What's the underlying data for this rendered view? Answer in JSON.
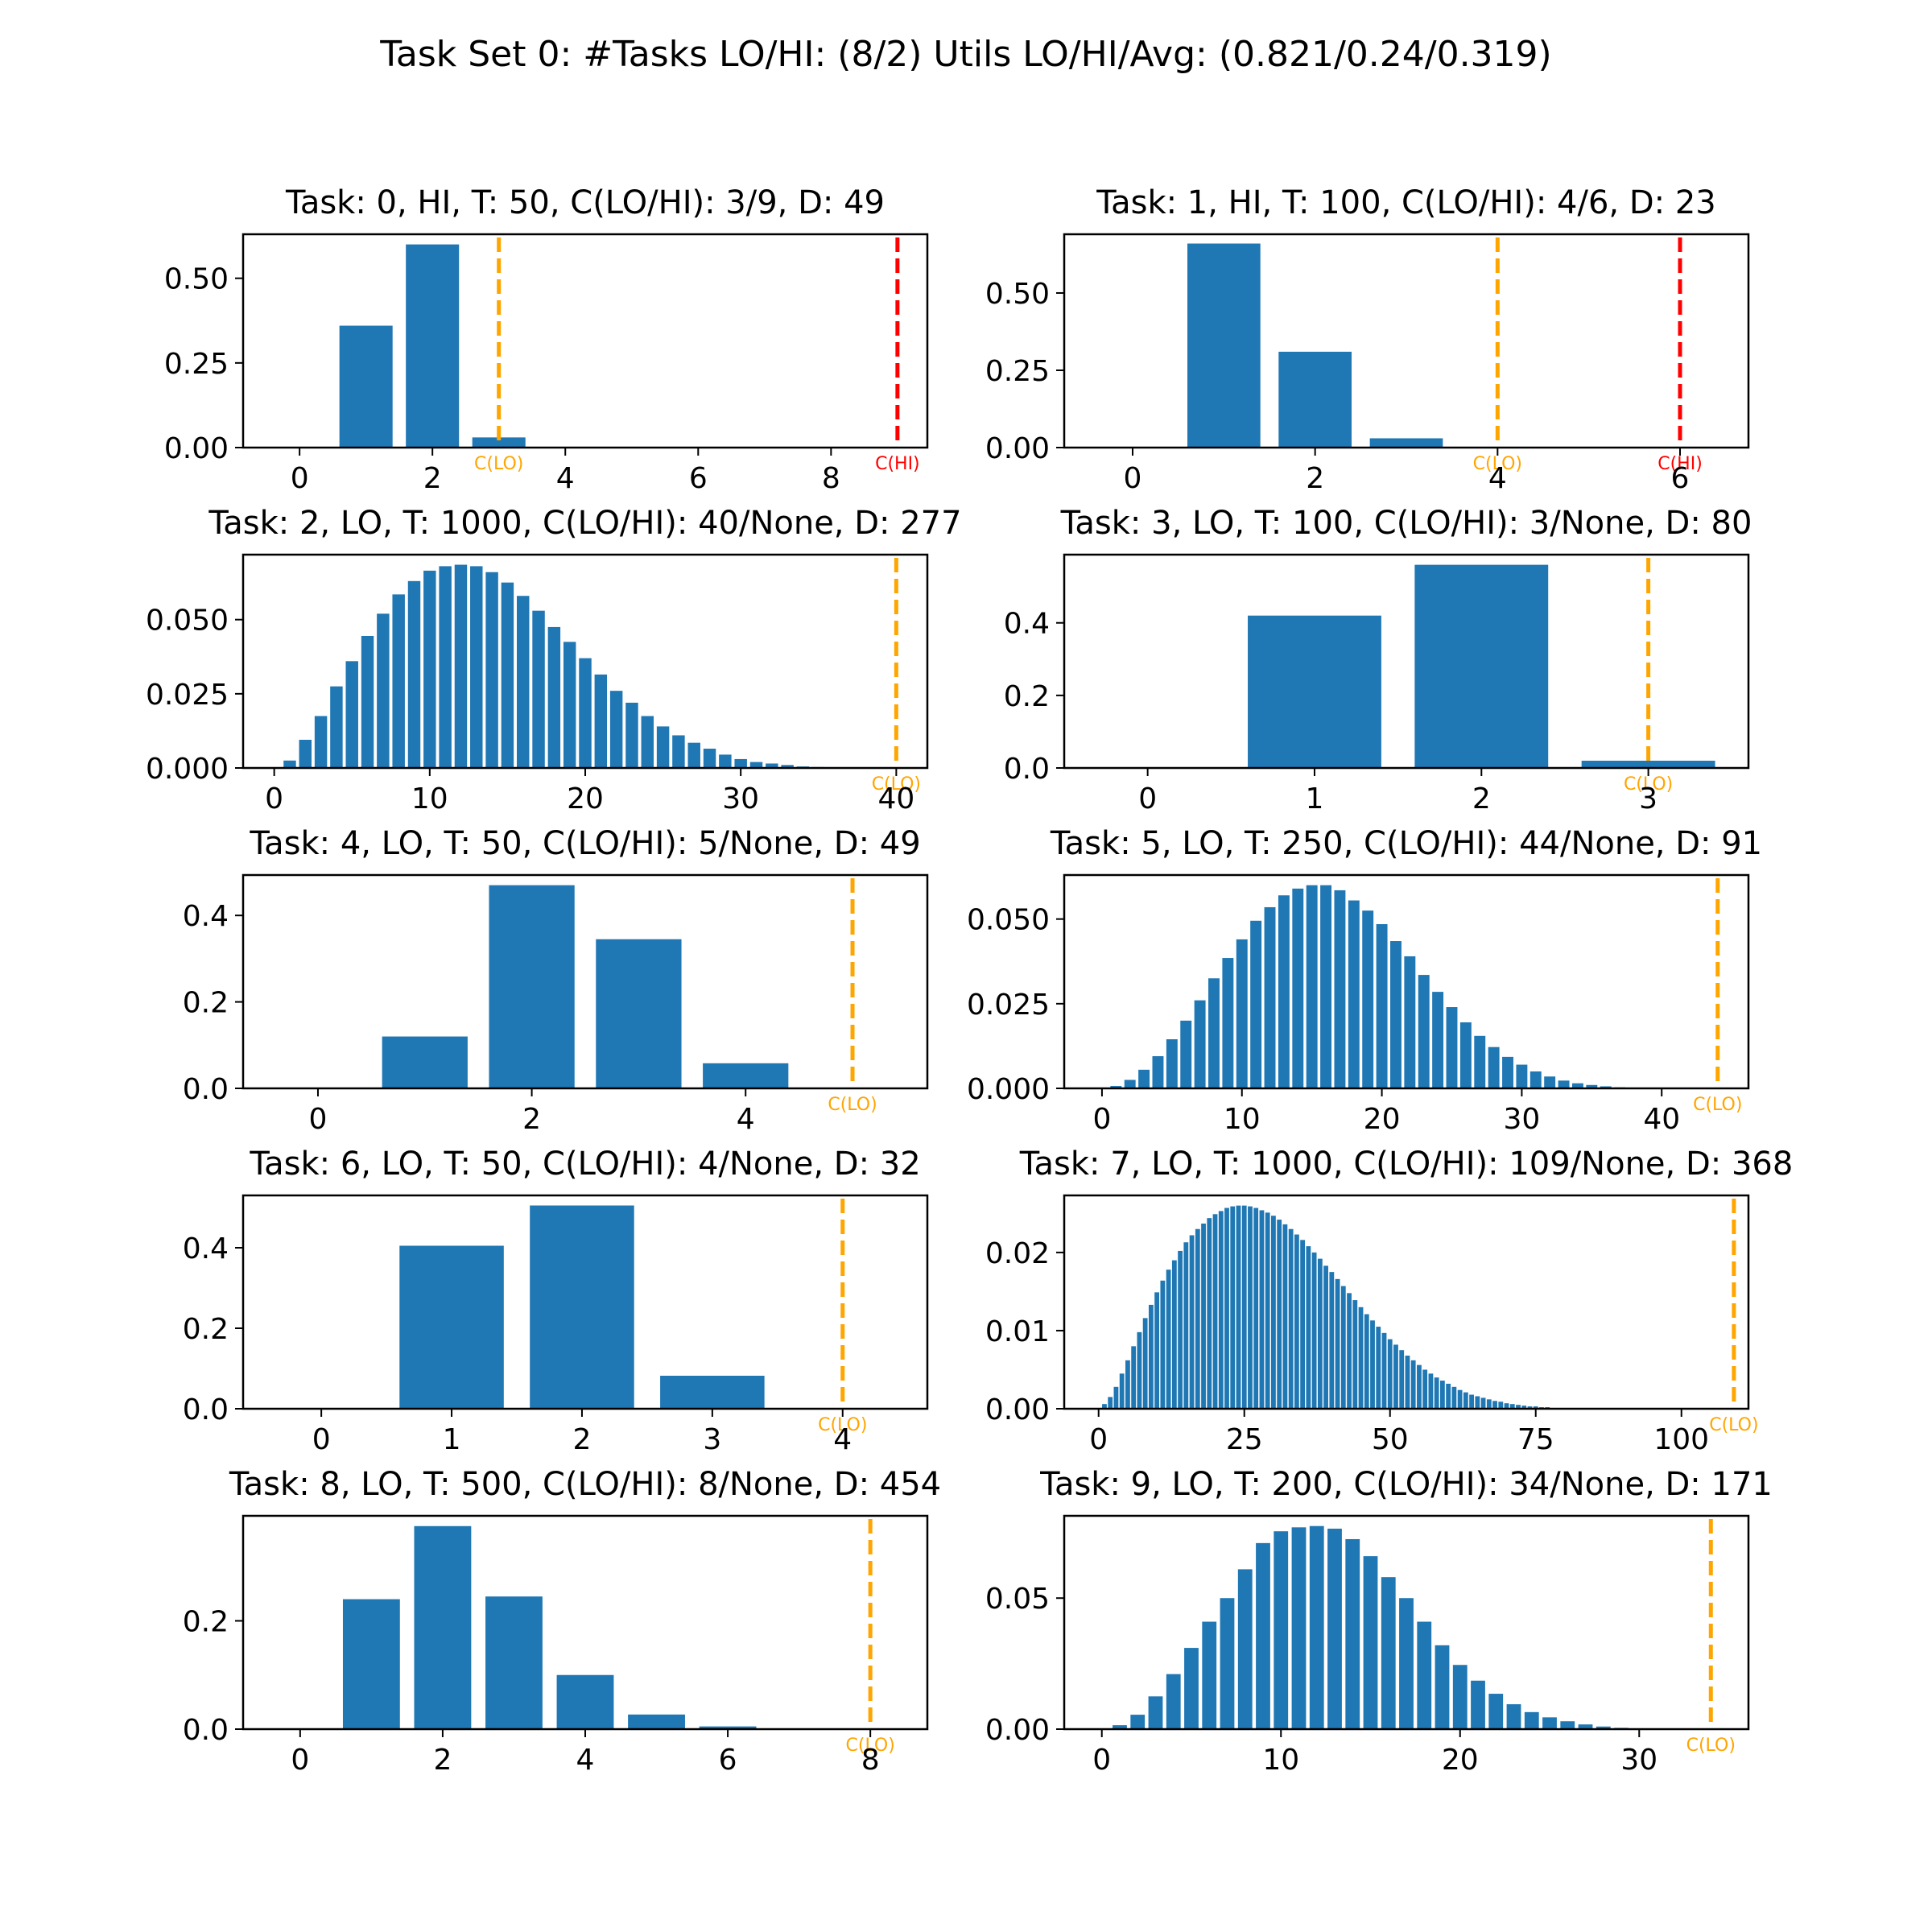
{
  "figure": {
    "suptitle": "Task Set 0: #Tasks LO/HI: (8/2)  Utils LO/HI/Avg: (0.821/0.24/0.319)"
  },
  "colors": {
    "bar": "#1f77b4",
    "c_lo": "#ffa500",
    "c_hi": "#ff0000",
    "axis": "#000000"
  },
  "chart_data": [
    {
      "type": "bar",
      "title": "Task: 0, HI, T: 50, C(LO/HI): 3/9, D: 49",
      "x": [
        0,
        1,
        2,
        3,
        4,
        5,
        6,
        7,
        8,
        9
      ],
      "values": [
        0,
        0.36,
        0.6,
        0.03,
        0,
        0,
        0,
        0,
        0,
        0
      ],
      "xlim": [
        -0.85,
        9.45
      ],
      "ylim": [
        0,
        0.63
      ],
      "xticks": [
        0,
        2,
        4,
        6,
        8
      ],
      "yticks": [
        0.0,
        0.25,
        0.5
      ],
      "ytick_labels": [
        "0.00",
        "0.25",
        "0.50"
      ],
      "markers": [
        {
          "x": 3,
          "label": "C(LO)",
          "kind": "lo"
        },
        {
          "x": 9,
          "label": "C(HI)",
          "kind": "hi"
        }
      ]
    },
    {
      "type": "bar",
      "title": "Task: 1, HI, T: 100, C(LO/HI): 4/6, D: 23",
      "x": [
        0,
        1,
        2,
        3,
        4,
        5,
        6
      ],
      "values": [
        0,
        0.66,
        0.31,
        0.03,
        0,
        0,
        0
      ],
      "xlim": [
        -0.75,
        6.75
      ],
      "ylim": [
        0,
        0.69
      ],
      "xticks": [
        0,
        2,
        4,
        6
      ],
      "yticks": [
        0.0,
        0.25,
        0.5
      ],
      "ytick_labels": [
        "0.00",
        "0.25",
        "0.50"
      ],
      "markers": [
        {
          "x": 4,
          "label": "C(LO)",
          "kind": "lo"
        },
        {
          "x": 6,
          "label": "C(HI)",
          "kind": "hi"
        }
      ]
    },
    {
      "type": "bar",
      "title": "Task: 2, LO, T: 1000, C(LO/HI): 40/None, D: 277",
      "x": [
        0,
        1,
        2,
        3,
        4,
        5,
        6,
        7,
        8,
        9,
        10,
        11,
        12,
        13,
        14,
        15,
        16,
        17,
        18,
        19,
        20,
        21,
        22,
        23,
        24,
        25,
        26,
        27,
        28,
        29,
        30,
        31,
        32,
        33,
        34,
        35,
        36,
        37,
        38,
        39,
        40
      ],
      "values": [
        0,
        0.0025,
        0.0095,
        0.0175,
        0.0275,
        0.036,
        0.0445,
        0.052,
        0.0585,
        0.063,
        0.0665,
        0.068,
        0.0685,
        0.068,
        0.066,
        0.0625,
        0.058,
        0.053,
        0.0475,
        0.0425,
        0.037,
        0.0315,
        0.026,
        0.022,
        0.0175,
        0.014,
        0.011,
        0.0085,
        0.0065,
        0.0045,
        0.003,
        0.002,
        0.0015,
        0.001,
        0.0005,
        0.0003,
        0,
        0,
        0,
        0,
        0
      ],
      "xlim": [
        -2.0,
        42.0
      ],
      "ylim": [
        0,
        0.0719
      ],
      "xticks": [
        0,
        10,
        20,
        30,
        40
      ],
      "yticks": [
        0.0,
        0.025,
        0.05
      ],
      "ytick_labels": [
        "0.000",
        "0.025",
        "0.050"
      ],
      "markers": [
        {
          "x": 40,
          "label": "C(LO)",
          "kind": "lo"
        }
      ]
    },
    {
      "type": "bar",
      "title": "Task: 3, LO, T: 100, C(LO/HI): 3/None, D: 80",
      "x": [
        0,
        1,
        2,
        3
      ],
      "values": [
        0,
        0.42,
        0.56,
        0.02
      ],
      "xlim": [
        -0.5,
        3.6
      ],
      "ylim": [
        0,
        0.588
      ],
      "xticks": [
        0,
        1,
        2,
        3
      ],
      "yticks": [
        0.0,
        0.2,
        0.4
      ],
      "ytick_labels": [
        "0.0",
        "0.2",
        "0.4"
      ],
      "markers": [
        {
          "x": 3,
          "label": "C(LO)",
          "kind": "lo"
        }
      ]
    },
    {
      "type": "bar",
      "title": "Task: 4, LO, T: 50, C(LO/HI): 5/None, D: 49",
      "x": [
        0,
        1,
        2,
        3,
        4,
        5
      ],
      "values": [
        0,
        0.12,
        0.47,
        0.345,
        0.058,
        0
      ],
      "xlim": [
        -0.7,
        5.7
      ],
      "ylim": [
        0,
        0.4935
      ],
      "xticks": [
        0,
        2,
        4
      ],
      "yticks": [
        0.0,
        0.2,
        0.4
      ],
      "ytick_labels": [
        "0.0",
        "0.2",
        "0.4"
      ],
      "markers": [
        {
          "x": 5,
          "label": "C(LO)",
          "kind": "lo"
        }
      ]
    },
    {
      "type": "bar",
      "title": "Task: 5, LO, T: 250, C(LO/HI): 44/None, D: 91",
      "x": [
        0,
        1,
        2,
        3,
        4,
        5,
        6,
        7,
        8,
        9,
        10,
        11,
        12,
        13,
        14,
        15,
        16,
        17,
        18,
        19,
        20,
        21,
        22,
        23,
        24,
        25,
        26,
        27,
        28,
        29,
        30,
        31,
        32,
        33,
        34,
        35,
        36,
        37,
        38,
        39,
        40,
        41,
        42,
        43,
        44
      ],
      "values": [
        0,
        0.0007,
        0.0025,
        0.0055,
        0.0095,
        0.0145,
        0.02,
        0.026,
        0.0325,
        0.0385,
        0.044,
        0.0495,
        0.0535,
        0.057,
        0.059,
        0.06,
        0.06,
        0.0585,
        0.0555,
        0.0525,
        0.0485,
        0.0435,
        0.039,
        0.0335,
        0.0285,
        0.024,
        0.0195,
        0.0155,
        0.0122,
        0.0093,
        0.007,
        0.005,
        0.0035,
        0.0023,
        0.0015,
        0.001,
        0.0006,
        0.0003,
        0,
        0,
        0,
        0,
        0,
        0,
        0
      ],
      "xlim": [
        -2.7,
        46.2
      ],
      "ylim": [
        0,
        0.063
      ],
      "xticks": [
        0,
        10,
        20,
        30,
        40
      ],
      "yticks": [
        0.0,
        0.025,
        0.05
      ],
      "ytick_labels": [
        "0.000",
        "0.025",
        "0.050"
      ],
      "markers": [
        {
          "x": 44,
          "label": "C(LO)",
          "kind": "lo"
        }
      ]
    },
    {
      "type": "bar",
      "title": "Task: 6, LO, T: 50, C(LO/HI): 4/None, D: 32",
      "x": [
        0,
        1,
        2,
        3,
        4
      ],
      "values": [
        0,
        0.405,
        0.505,
        0.082,
        0
      ],
      "xlim": [
        -0.6,
        4.65
      ],
      "ylim": [
        0,
        0.53
      ],
      "xticks": [
        0,
        1,
        2,
        3,
        4
      ],
      "yticks": [
        0.0,
        0.2,
        0.4
      ],
      "ytick_labels": [
        "0.0",
        "0.2",
        "0.4"
      ],
      "markers": [
        {
          "x": 4,
          "label": "C(LO)",
          "kind": "lo"
        }
      ]
    },
    {
      "type": "bar",
      "title": "Task: 7, LO, T: 1000, C(LO/HI): 109/None, D: 368",
      "x": [
        0,
        1,
        2,
        3,
        4,
        5,
        6,
        7,
        8,
        9,
        10,
        11,
        12,
        13,
        14,
        15,
        16,
        17,
        18,
        19,
        20,
        21,
        22,
        23,
        24,
        25,
        26,
        27,
        28,
        29,
        30,
        31,
        32,
        33,
        34,
        35,
        36,
        37,
        38,
        39,
        40,
        41,
        42,
        43,
        44,
        45,
        46,
        47,
        48,
        49,
        50,
        51,
        52,
        53,
        54,
        55,
        56,
        57,
        58,
        59,
        60,
        61,
        62,
        63,
        64,
        65,
        66,
        67,
        68,
        69,
        70,
        71,
        72,
        73,
        74,
        75,
        76,
        77,
        78,
        79,
        80,
        81,
        82,
        83,
        84,
        85,
        86,
        87,
        88,
        89,
        90,
        91,
        92,
        93,
        94,
        95,
        96,
        97,
        98,
        99,
        100,
        101,
        102,
        103,
        104,
        105,
        106,
        107,
        108,
        109
      ],
      "values": [
        0,
        0.0006,
        0.0015,
        0.0028,
        0.0045,
        0.0062,
        0.008,
        0.0098,
        0.0116,
        0.0133,
        0.0149,
        0.0164,
        0.0178,
        0.019,
        0.0202,
        0.0213,
        0.0222,
        0.023,
        0.0237,
        0.0244,
        0.0249,
        0.0253,
        0.0257,
        0.0259,
        0.026,
        0.026,
        0.0259,
        0.0257,
        0.0254,
        0.0251,
        0.0247,
        0.0242,
        0.0236,
        0.023,
        0.0223,
        0.0216,
        0.0208,
        0.02,
        0.0192,
        0.0183,
        0.0175,
        0.0166,
        0.0157,
        0.0148,
        0.0139,
        0.013,
        0.0121,
        0.0113,
        0.0105,
        0.0097,
        0.0089,
        0.0082,
        0.0075,
        0.0068,
        0.0062,
        0.0056,
        0.005,
        0.0045,
        0.004,
        0.0036,
        0.0032,
        0.0028,
        0.0024,
        0.0021,
        0.0018,
        0.0016,
        0.0014,
        0.0012,
        0.001,
        0.0009,
        0.0007,
        0.0006,
        0.0005,
        0.0004,
        0.0003,
        0.0003,
        0.0002,
        0.0002,
        0.0001,
        0.0001,
        0.0001,
        0.0001,
        5e-05,
        5e-05,
        3e-05,
        2e-05,
        0,
        0,
        0,
        0,
        0,
        0,
        0,
        0,
        0,
        0,
        0,
        0,
        0,
        0,
        0,
        0,
        0,
        0,
        0,
        0,
        0,
        0,
        0,
        0
      ],
      "xlim": [
        -5.9,
        111.5
      ],
      "ylim": [
        0,
        0.0273
      ],
      "xticks": [
        0,
        25,
        50,
        75,
        100
      ],
      "yticks": [
        0.0,
        0.01,
        0.02
      ],
      "ytick_labels": [
        "0.00",
        "0.01",
        "0.02"
      ],
      "markers": [
        {
          "x": 109,
          "label": "C(LO)",
          "kind": "lo"
        }
      ]
    },
    {
      "type": "bar",
      "title": "Task: 8, LO, T: 500, C(LO/HI): 8/None, D: 454",
      "x": [
        0,
        1,
        2,
        3,
        4,
        5,
        6,
        7,
        8
      ],
      "values": [
        0,
        0.24,
        0.375,
        0.245,
        0.1,
        0.027,
        0.005,
        0,
        0
      ],
      "xlim": [
        -0.8,
        8.8
      ],
      "ylim": [
        0,
        0.394
      ],
      "xticks": [
        0,
        2,
        4,
        6,
        8
      ],
      "yticks": [
        0.0,
        0.2
      ],
      "ytick_labels": [
        "0.0",
        "0.2"
      ],
      "markers": [
        {
          "x": 8,
          "label": "C(LO)",
          "kind": "lo"
        }
      ]
    },
    {
      "type": "bar",
      "title": "Task: 9, LO, T: 200, C(LO/HI): 34/None, D: 171",
      "x": [
        0,
        1,
        2,
        3,
        4,
        5,
        6,
        7,
        8,
        9,
        10,
        11,
        12,
        13,
        14,
        15,
        16,
        17,
        18,
        19,
        20,
        21,
        22,
        23,
        24,
        25,
        26,
        27,
        28,
        29,
        30,
        31,
        32,
        33,
        34
      ],
      "values": [
        0,
        0.0015,
        0.0055,
        0.0125,
        0.021,
        0.031,
        0.041,
        0.05,
        0.061,
        0.071,
        0.0755,
        0.077,
        0.0775,
        0.0765,
        0.0725,
        0.066,
        0.058,
        0.05,
        0.041,
        0.032,
        0.0245,
        0.0185,
        0.0135,
        0.0095,
        0.0065,
        0.0045,
        0.003,
        0.0018,
        0.001,
        0.0005,
        0.0002,
        0,
        0,
        0,
        0
      ],
      "xlim": [
        -2.1,
        36.1
      ],
      "ylim": [
        0,
        0.0814
      ],
      "xticks": [
        0,
        10,
        20,
        30
      ],
      "yticks": [
        0.0,
        0.05
      ],
      "ytick_labels": [
        "0.00",
        "0.05"
      ],
      "markers": [
        {
          "x": 34,
          "label": "C(LO)",
          "kind": "lo"
        }
      ]
    }
  ]
}
